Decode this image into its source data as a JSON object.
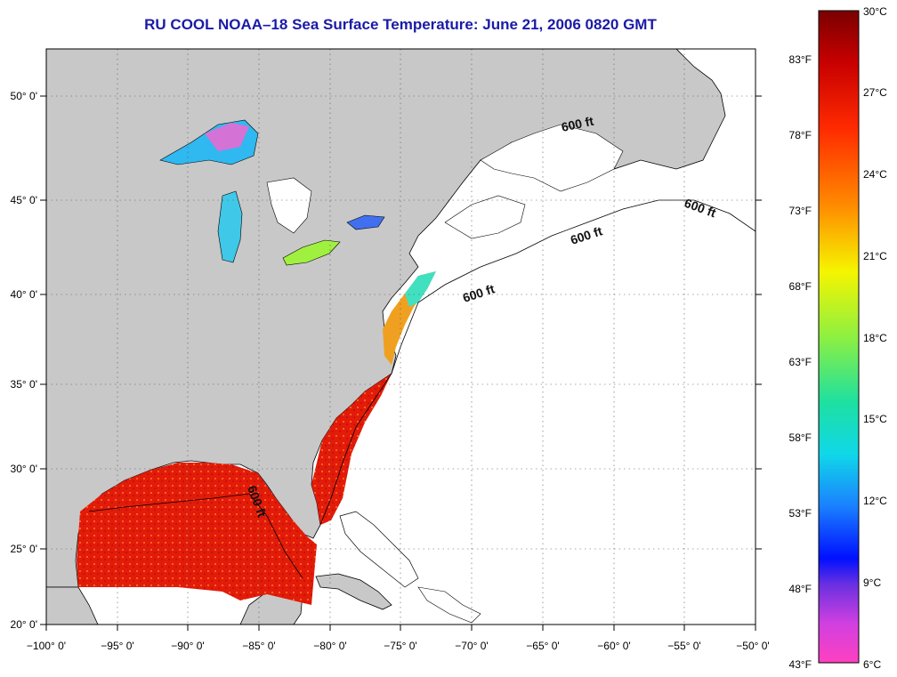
{
  "title": "RU COOL  NOAA–18  Sea Surface Temperature:  June 21, 2006 0820 GMT",
  "map": {
    "lon_range": [
      -100,
      -50
    ],
    "lat_range": [
      20,
      52.5
    ],
    "lon_ticks": [
      "−100° 0'",
      "−95° 0'",
      "−90° 0'",
      "−85° 0'",
      "−80° 0'",
      "−75° 0'",
      "−70° 0'",
      "−65° 0'",
      "−60° 0'",
      "−55° 0'",
      "−50° 0'"
    ],
    "lat_ticks": [
      "20° 0'",
      "25° 0'",
      "30° 0'",
      "35° 0'",
      "40° 0'",
      "45° 0'",
      "50° 0'"
    ],
    "isobath_labels": [
      "600 ft",
      "600 ft",
      "600 ft",
      "600 ft",
      "600 ft"
    ],
    "colors": {
      "land": "#c8c8c8",
      "ocean": "#ffffff",
      "warm_sst": "#e8200a",
      "title": "#1a1aa8"
    }
  },
  "colorbar": {
    "celsius_labels": [
      "30°C",
      "27°C",
      "24°C",
      "21°C",
      "18°C",
      "15°C",
      "12°C",
      "9°C",
      "6°C"
    ],
    "fahrenheit_labels": [
      "83°F",
      "78°F",
      "73°F",
      "68°F",
      "63°F",
      "58°F",
      "53°F",
      "48°F",
      "43°F"
    ]
  }
}
